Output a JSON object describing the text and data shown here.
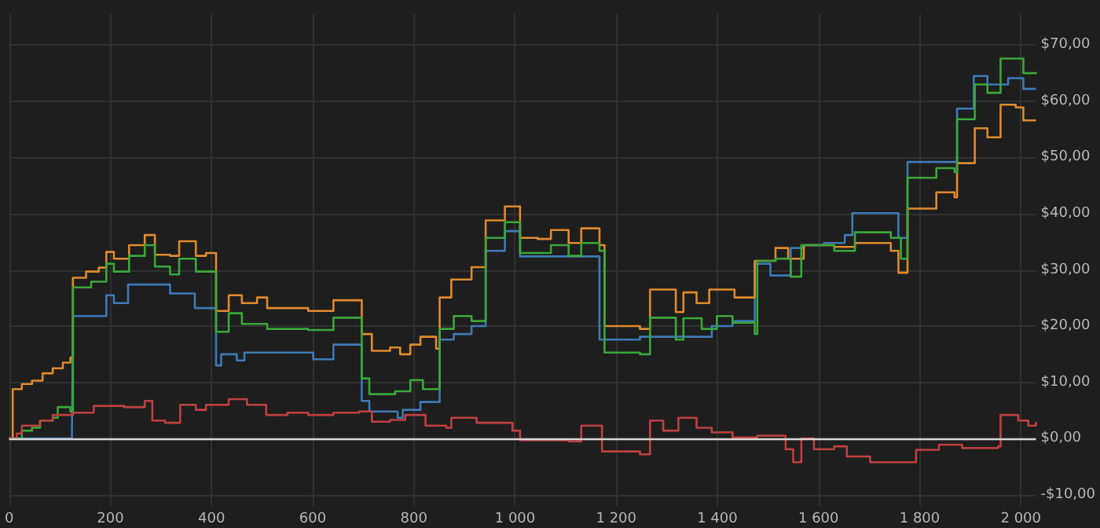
{
  "chart_data": {
    "type": "step",
    "xlim": [
      0,
      2030
    ],
    "ylim": [
      -12,
      75.5
    ],
    "grid": true,
    "line_style": "solid",
    "marker": "none",
    "xticks": [
      0,
      200,
      400,
      600,
      800,
      {
        "value": 1000,
        "label": "1 000"
      },
      {
        "value": 1200,
        "label": "1 200"
      },
      {
        "value": 1400,
        "label": "1 400"
      },
      {
        "value": 1600,
        "label": "1 600"
      },
      {
        "value": 1800,
        "label": "1 800"
      },
      {
        "value": 2000,
        "label": "2 000"
      }
    ],
    "yticks": [
      {
        "value": -10,
        "label": "-$10,00"
      },
      {
        "value": 0,
        "label": "$0,00"
      },
      {
        "value": 10,
        "label": "$10,00"
      },
      {
        "value": 20,
        "label": "$20,00"
      },
      {
        "value": 30,
        "label": "$30,00"
      },
      {
        "value": 40,
        "label": "$40,00"
      },
      {
        "value": 50,
        "label": "$50,00"
      },
      {
        "value": 60,
        "label": "$60,00"
      },
      {
        "value": 70,
        "label": "$70,00"
      }
    ],
    "ref_lines": [
      {
        "axis": "y",
        "value": 0,
        "color": "#d8d8d8"
      }
    ],
    "series": [
      {
        "color": "#3d7ab8",
        "x": [
          0,
          116,
          124,
          126,
          192,
          207,
          235,
          313,
          318,
          367,
          409,
          419,
          450,
          465,
          601,
          641,
          697,
          712,
          768,
          778,
          813,
          851,
          879,
          914,
          942,
          980,
          1010,
          1167,
          1247,
          1389,
          1430,
          1474,
          1505,
          1545,
          1571,
          1611,
          1652,
          1667,
          1743,
          1758,
          1776,
          1871,
          1874,
          1907,
          1934,
          1975,
          2005,
          2030
        ],
        "values": [
          0,
          0,
          1.1,
          21.8,
          25.5,
          24.1,
          27.4,
          27.4,
          25.8,
          23.2,
          13,
          15,
          13.9,
          15.3,
          14.1,
          16.7,
          6.7,
          4.8,
          3.7,
          5.1,
          6.5,
          17.6,
          18.6,
          20,
          33.4,
          36.9,
          32.4,
          17.6,
          18.1,
          20,
          20.9,
          31.1,
          29,
          33.9,
          34.4,
          34.8,
          36.2,
          40.1,
          40.1,
          35.7,
          49.2,
          49.2,
          58.7,
          64.5,
          63,
          64.1,
          62.2,
          62.2
        ]
      },
      {
        "color": "#e08a2c",
        "x": [
          0,
          7,
          25,
          45,
          66,
          86,
          106,
          121,
          126,
          152,
          177,
          192,
          207,
          237,
          268,
          288,
          318,
          336,
          369,
          389,
          409,
          434,
          460,
          490,
          510,
          550,
          591,
          641,
          697,
          717,
          753,
          773,
          793,
          813,
          844,
          851,
          874,
          914,
          942,
          980,
          1010,
          1045,
          1071,
          1106,
          1131,
          1167,
          1177,
          1247,
          1267,
          1318,
          1333,
          1359,
          1384,
          1434,
          1474,
          1515,
          1540,
          1571,
          1631,
          1672,
          1743,
          1758,
          1776,
          1833,
          1869,
          1874,
          1909,
          1934,
          1960,
          1990,
          2005,
          2030
        ],
        "values": [
          0,
          8.8,
          9.7,
          10.3,
          11.6,
          12.5,
          13.5,
          14.4,
          28.6,
          29.7,
          30.4,
          33.2,
          32,
          34.4,
          36.2,
          32.7,
          32.5,
          35.1,
          32.5,
          33,
          22.7,
          25.5,
          24.1,
          25.1,
          23.2,
          23.2,
          22.7,
          24.6,
          18.6,
          15.6,
          16.2,
          15,
          16.7,
          18.1,
          16,
          25.1,
          28.3,
          30.5,
          38.8,
          41.3,
          35.7,
          35.5,
          37.1,
          34.8,
          37.4,
          34.4,
          20,
          19.5,
          26.5,
          22.5,
          26,
          24.1,
          26.5,
          25.1,
          31.6,
          33.9,
          32,
          34.4,
          34.1,
          34.8,
          33.4,
          29.5,
          40.9,
          43.8,
          42.9,
          49,
          55.2,
          53.6,
          59.4,
          58.9,
          56.6,
          56.6
        ]
      },
      {
        "color": "#3aa83a",
        "x": [
          0,
          25,
          45,
          61,
          86,
          96,
          121,
          126,
          162,
          192,
          207,
          237,
          268,
          288,
          318,
          336,
          369,
          409,
          434,
          460,
          510,
          591,
          641,
          697,
          712,
          763,
          793,
          818,
          851,
          879,
          914,
          942,
          980,
          1010,
          1045,
          1071,
          1106,
          1131,
          1167,
          1177,
          1247,
          1267,
          1318,
          1333,
          1369,
          1399,
          1430,
          1474,
          1479,
          1515,
          1545,
          1566,
          1631,
          1672,
          1743,
          1763,
          1776,
          1833,
          1869,
          1874,
          1909,
          1934,
          1960,
          2005,
          2030
        ],
        "values": [
          0,
          1.4,
          1.9,
          3.2,
          3.7,
          5.6,
          4.8,
          26.9,
          27.9,
          31.1,
          29.7,
          32.5,
          34.4,
          30.6,
          29.2,
          32,
          29.7,
          19,
          22.3,
          20.4,
          19.5,
          19.3,
          21.5,
          10.7,
          7.9,
          8.4,
          10.4,
          8.8,
          19.5,
          21.8,
          20.9,
          35.7,
          38.5,
          33,
          33,
          34.4,
          32.5,
          34.8,
          33.4,
          15.3,
          15,
          21.5,
          17.6,
          21.4,
          19.5,
          21.8,
          20.6,
          18.6,
          31.6,
          32,
          28.8,
          34.4,
          33.4,
          36.7,
          35.7,
          32,
          46.4,
          48.1,
          47.4,
          56.8,
          63,
          61.5,
          67.6,
          65,
          65.2
        ]
      },
      {
        "color": "#c04040",
        "x": [
          0,
          15,
          25,
          61,
          86,
          126,
          167,
          227,
          268,
          283,
          308,
          338,
          369,
          389,
          434,
          470,
          508,
          550,
          591,
          641,
          692,
          717,
          753,
          783,
          813,
          823,
          864,
          874,
          924,
          995,
          1010,
          1106,
          1131,
          1172,
          1247,
          1267,
          1293,
          1323,
          1359,
          1389,
          1430,
          1479,
          1535,
          1550,
          1566,
          1591,
          1631,
          1656,
          1702,
          1752,
          1793,
          1838,
          1884,
          1955,
          1960,
          1995,
          2015,
          2030
        ],
        "values": [
          0,
          0.9,
          2.3,
          3.2,
          4.2,
          4.6,
          5.8,
          5.6,
          6.7,
          3.2,
          2.8,
          6,
          5.1,
          6,
          7,
          6,
          4.2,
          4.6,
          4.2,
          4.6,
          4.8,
          3,
          3.3,
          4.2,
          4.2,
          2.3,
          1.9,
          3.7,
          2.8,
          1.4,
          -0.3,
          -0.5,
          2.3,
          -2.3,
          -2.8,
          3.2,
          1.4,
          3.7,
          1.9,
          1.1,
          0.2,
          0.5,
          -1.9,
          -4.2,
          0,
          -1.9,
          -1.4,
          -3.2,
          -4.2,
          -4.2,
          -2,
          -1.1,
          -1.7,
          -1.4,
          4.2,
          3.2,
          2.3,
          3
        ]
      }
    ]
  }
}
